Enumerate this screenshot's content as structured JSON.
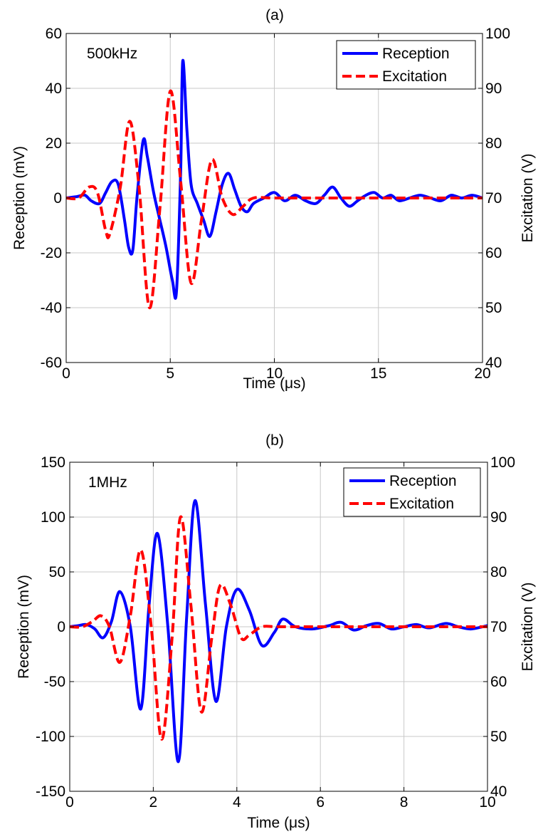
{
  "chart_data": [
    {
      "type": "line",
      "title": "(a)",
      "annotation": "500kHz",
      "xlabel": "Time (μs)",
      "ylabel": "Reception (mV)",
      "y2label": "Excitation (V)",
      "xlim": [
        0,
        20
      ],
      "ylim": [
        -60,
        60
      ],
      "y2lim": [
        40,
        100
      ],
      "xticks": [
        "0",
        "5",
        "10",
        "15",
        "20"
      ],
      "yticks": [
        "-60",
        "-40",
        "-20",
        "0",
        "20",
        "40",
        "60"
      ],
      "y2ticks": [
        "40",
        "50",
        "60",
        "70",
        "80",
        "90",
        "100"
      ],
      "grid": true,
      "legend_position": "top-right",
      "series": [
        {
          "name": "Reception",
          "axis": "left",
          "color": "#0000ff",
          "style": "solid",
          "x": [
            0,
            0.5,
            0.9,
            1.2,
            1.6,
            1.9,
            2.2,
            2.5,
            2.8,
            3.0,
            3.2,
            3.4,
            3.7,
            3.9,
            4.2,
            4.5,
            4.8,
            5.1,
            5.3,
            5.5,
            5.6,
            5.8,
            6.0,
            6.3,
            6.6,
            6.9,
            7.2,
            7.5,
            7.8,
            8.1,
            8.4,
            8.7,
            9.0,
            9.5,
            10.0,
            10.5,
            11.0,
            11.5,
            12.0,
            12.4,
            12.8,
            13.2,
            13.6,
            14.0,
            14.4,
            14.8,
            15.2,
            15.6,
            16.0,
            16.5,
            17.0,
            17.5,
            18.0,
            18.5,
            19.0,
            19.5,
            20.0
          ],
          "y": [
            0,
            0.5,
            1,
            -1,
            -2,
            2,
            6,
            5,
            -8,
            -18,
            -19,
            0,
            21,
            15,
            2,
            -8,
            -18,
            -30,
            -34,
            10,
            50,
            25,
            5,
            -2,
            -8,
            -14,
            -5,
            5,
            9,
            3,
            -3,
            -5,
            -2,
            0,
            2,
            -1,
            1,
            -1,
            -2,
            1,
            4,
            0,
            -3,
            -1,
            1,
            2,
            0,
            1,
            -1,
            0,
            1,
            0,
            -1,
            1,
            0,
            1,
            0
          ]
        },
        {
          "name": "Excitation",
          "axis": "right",
          "color": "#ff0000",
          "style": "dashed",
          "x": [
            0,
            0.6,
            1.1,
            1.5,
            1.9,
            2.1,
            2.6,
            3.05,
            3.5,
            4.0,
            4.5,
            5.0,
            5.5,
            6.0,
            6.5,
            7.0,
            7.5,
            8.0,
            8.5,
            9.0,
            10.0,
            12.0,
            14.0,
            16.0,
            18.0,
            20.0
          ],
          "y": [
            70,
            70,
            72,
            71,
            64,
            63.5,
            72,
            84,
            72,
            50,
            68,
            89.5,
            73,
            54.5,
            66,
            77,
            70,
            67,
            68.5,
            70,
            70,
            70,
            70,
            70,
            70,
            70
          ]
        }
      ]
    },
    {
      "type": "line",
      "title": "(b)",
      "annotation": "1MHz",
      "xlabel": "Time (μs)",
      "ylabel": "Reception (mV)",
      "y2label": "Excitation (V)",
      "xlim": [
        0,
        10
      ],
      "ylim": [
        -150,
        150
      ],
      "y2lim": [
        40,
        100
      ],
      "xticks": [
        "0",
        "2",
        "4",
        "6",
        "8",
        "10"
      ],
      "yticks": [
        "-150",
        "-100",
        "-50",
        "0",
        "50",
        "100",
        "150"
      ],
      "y2ticks": [
        "40",
        "50",
        "60",
        "70",
        "80",
        "90",
        "100"
      ],
      "grid": true,
      "legend_position": "top-right",
      "series": [
        {
          "name": "Reception",
          "axis": "left",
          "color": "#0000ff",
          "style": "solid",
          "x": [
            0,
            0.2,
            0.4,
            0.6,
            0.8,
            1.0,
            1.2,
            1.45,
            1.7,
            1.9,
            2.1,
            2.35,
            2.6,
            2.8,
            3.0,
            3.25,
            3.5,
            3.75,
            4.0,
            4.3,
            4.6,
            4.9,
            5.1,
            5.4,
            5.8,
            6.2,
            6.5,
            6.8,
            7.1,
            7.4,
            7.7,
            8.0,
            8.3,
            8.6,
            9.0,
            9.3,
            9.6,
            10.0
          ],
          "y": [
            0,
            1,
            2,
            -2,
            -10,
            5,
            32,
            0,
            -75,
            20,
            85,
            0,
            -123,
            10,
            115,
            20,
            -68,
            0,
            34,
            15,
            -17,
            -5,
            7,
            0,
            -2,
            1,
            4,
            -3,
            1,
            3,
            -2,
            0,
            2,
            -1,
            3,
            0,
            -2,
            1
          ]
        },
        {
          "name": "Excitation",
          "axis": "right",
          "color": "#ff0000",
          "style": "dashed",
          "x": [
            0,
            0.3,
            0.55,
            0.75,
            0.95,
            1.2,
            1.45,
            1.7,
            1.95,
            2.2,
            2.45,
            2.65,
            2.9,
            3.15,
            3.4,
            3.6,
            3.85,
            4.1,
            4.3,
            4.6,
            5.0,
            6.0,
            7.0,
            8.0,
            9.0,
            10.0
          ],
          "y": [
            70,
            70,
            71,
            72,
            70,
            63.5,
            72,
            84,
            70,
            49.5,
            68,
            90,
            74,
            54.5,
            68,
            77.5,
            74,
            68,
            68.5,
            70,
            70,
            70,
            70,
            70,
            70,
            70
          ]
        }
      ]
    }
  ]
}
